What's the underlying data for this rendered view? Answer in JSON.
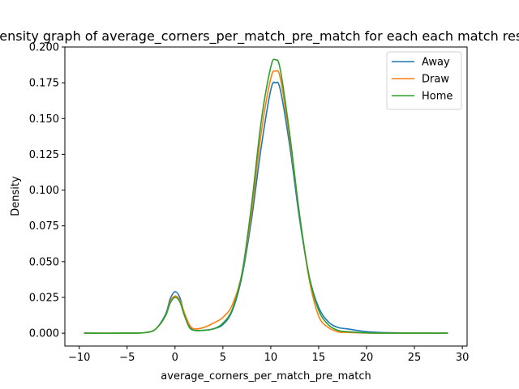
{
  "chart_data": {
    "type": "line",
    "title": "Density graph of average_corners_per_match_pre_match for each each match result",
    "xlabel": "average_corners_per_match_pre_match",
    "ylabel": "Density",
    "xlim": [
      -11.5,
      30.5
    ],
    "ylim": [
      -0.009,
      0.2
    ],
    "xticks": [
      -10,
      -5,
      0,
      5,
      10,
      15,
      20,
      25,
      30
    ],
    "xtick_labels": [
      "−10",
      "−5",
      "0",
      "5",
      "10",
      "15",
      "20",
      "25",
      "30"
    ],
    "yticks": [
      0.0,
      0.025,
      0.05,
      0.075,
      0.1,
      0.125,
      0.15,
      0.175,
      0.2
    ],
    "ytick_labels": [
      "0.000",
      "0.025",
      "0.050",
      "0.075",
      "0.100",
      "0.125",
      "0.150",
      "0.175",
      "0.200"
    ],
    "grid": false,
    "legend_position": "upper right",
    "series": [
      {
        "name": "Away",
        "color": "#1f77b4",
        "x": [
          -9.5,
          -5,
          -3,
          -2,
          -1,
          -0.5,
          0,
          0.5,
          1,
          1.5,
          2,
          3,
          4,
          5,
          6,
          7,
          8,
          9,
          10,
          10.5,
          11,
          12,
          13,
          14,
          15,
          16,
          17,
          18,
          20,
          22,
          24,
          26,
          28.5
        ],
        "y": [
          0.0,
          0.0,
          0.0005,
          0.003,
          0.013,
          0.024,
          0.029,
          0.025,
          0.013,
          0.005,
          0.002,
          0.002,
          0.003,
          0.006,
          0.016,
          0.04,
          0.08,
          0.13,
          0.17,
          0.175,
          0.17,
          0.13,
          0.08,
          0.04,
          0.018,
          0.008,
          0.004,
          0.003,
          0.001,
          0.0004,
          0.0001,
          0.0,
          0.0
        ]
      },
      {
        "name": "Draw",
        "color": "#ff7f0e",
        "x": [
          -9.5,
          -5,
          -3,
          -2,
          -1,
          -0.5,
          0,
          0.5,
          1,
          1.5,
          2,
          3,
          4,
          5,
          6,
          7,
          8,
          9,
          10,
          10.5,
          11,
          12,
          13,
          14,
          15,
          16,
          17,
          18,
          20,
          22,
          24,
          26,
          28.5
        ],
        "y": [
          0.0,
          0.0,
          0.0005,
          0.003,
          0.012,
          0.022,
          0.026,
          0.023,
          0.014,
          0.006,
          0.003,
          0.004,
          0.007,
          0.011,
          0.02,
          0.042,
          0.085,
          0.14,
          0.178,
          0.183,
          0.178,
          0.135,
          0.083,
          0.038,
          0.012,
          0.004,
          0.001,
          0.0005,
          0.0001,
          0.0,
          0.0,
          0.0,
          0.0
        ]
      },
      {
        "name": "Home",
        "color": "#2ca02c",
        "x": [
          -9.5,
          -5,
          -3,
          -2,
          -1,
          -0.5,
          0,
          0.5,
          1,
          1.5,
          2,
          3,
          4,
          5,
          6,
          7,
          8,
          9,
          10,
          10.5,
          11,
          12,
          13,
          14,
          15,
          16,
          17,
          18,
          20,
          22,
          24,
          26,
          28.5
        ],
        "y": [
          0.0,
          0.0,
          0.0005,
          0.003,
          0.012,
          0.021,
          0.025,
          0.022,
          0.012,
          0.004,
          0.002,
          0.002,
          0.003,
          0.007,
          0.017,
          0.042,
          0.09,
          0.148,
          0.186,
          0.191,
          0.184,
          0.138,
          0.083,
          0.04,
          0.016,
          0.006,
          0.002,
          0.001,
          0.0002,
          0.0,
          0.0,
          0.0,
          0.0
        ]
      }
    ]
  }
}
